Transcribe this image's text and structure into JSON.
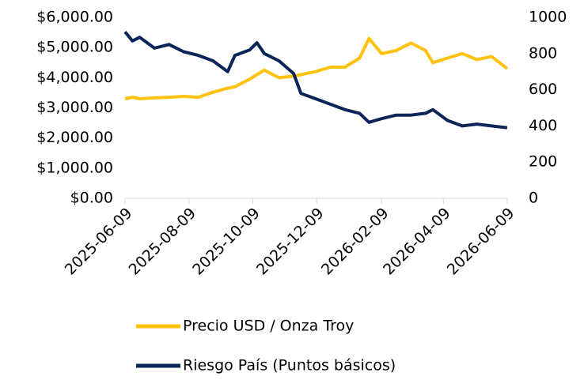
{
  "chart_data": {
    "type": "line",
    "x": [
      "2025-06-09",
      "2025-06-16",
      "2025-06-23",
      "2025-07-07",
      "2025-07-21",
      "2025-08-04",
      "2025-08-18",
      "2025-09-01",
      "2025-09-15",
      "2025-09-22",
      "2025-10-06",
      "2025-10-13",
      "2025-10-20",
      "2025-11-03",
      "2025-11-17",
      "2025-11-24",
      "2025-12-08",
      "2025-12-22",
      "2026-01-05",
      "2026-01-19",
      "2026-01-28",
      "2026-02-09",
      "2026-02-23",
      "2026-03-09",
      "2026-03-23",
      "2026-03-30",
      "2026-04-13",
      "2026-04-27",
      "2026-05-11",
      "2026-05-25",
      "2026-06-09"
    ],
    "series": [
      {
        "name": "Precio USD / Onza Troy",
        "color": "#ffc20e",
        "values": [
          3300,
          3350,
          3300,
          3330,
          3350,
          3380,
          3350,
          3520,
          3650,
          3700,
          3950,
          4100,
          4250,
          4000,
          4050,
          4100,
          4200,
          4350,
          4350,
          4650,
          5300,
          4800,
          4900,
          5150,
          4900,
          4500,
          4650,
          4800,
          4600,
          4700,
          4300
        ]
      },
      {
        "name": "Riesgo País (Puntos básicos)",
        "color": "#0b2559",
        "axis": "y2",
        "values": [
          920,
          870,
          890,
          830,
          850,
          810,
          790,
          760,
          700,
          790,
          820,
          860,
          800,
          760,
          690,
          580,
          550,
          520,
          490,
          470,
          420,
          440,
          460,
          460,
          470,
          490,
          430,
          400,
          410,
          400,
          390
        ]
      }
    ],
    "xlim": [
      "2025-06-09",
      "2026-06-09"
    ],
    "xticks": [
      "2025-06-09",
      "2025-08-09",
      "2025-10-09",
      "2025-12-09",
      "2026-02-09",
      "2026-04-09",
      "2026-06-09"
    ],
    "ylim": [
      0,
      6000
    ],
    "yticks": [
      {
        "value": 0,
        "label": "$0.00"
      },
      {
        "value": 1000,
        "label": "$1,000.00"
      },
      {
        "value": 2000,
        "label": "$2,000.00"
      },
      {
        "value": 3000,
        "label": "$3,000.00"
      },
      {
        "value": 4000,
        "label": "$4,000.00"
      },
      {
        "value": 5000,
        "label": "$5,000.00"
      },
      {
        "value": 6000,
        "label": "$6,000.00"
      }
    ],
    "y2lim": [
      0,
      1000
    ],
    "y2ticks": [
      0,
      200,
      400,
      600,
      800,
      1000
    ],
    "legend": "bottom"
  }
}
